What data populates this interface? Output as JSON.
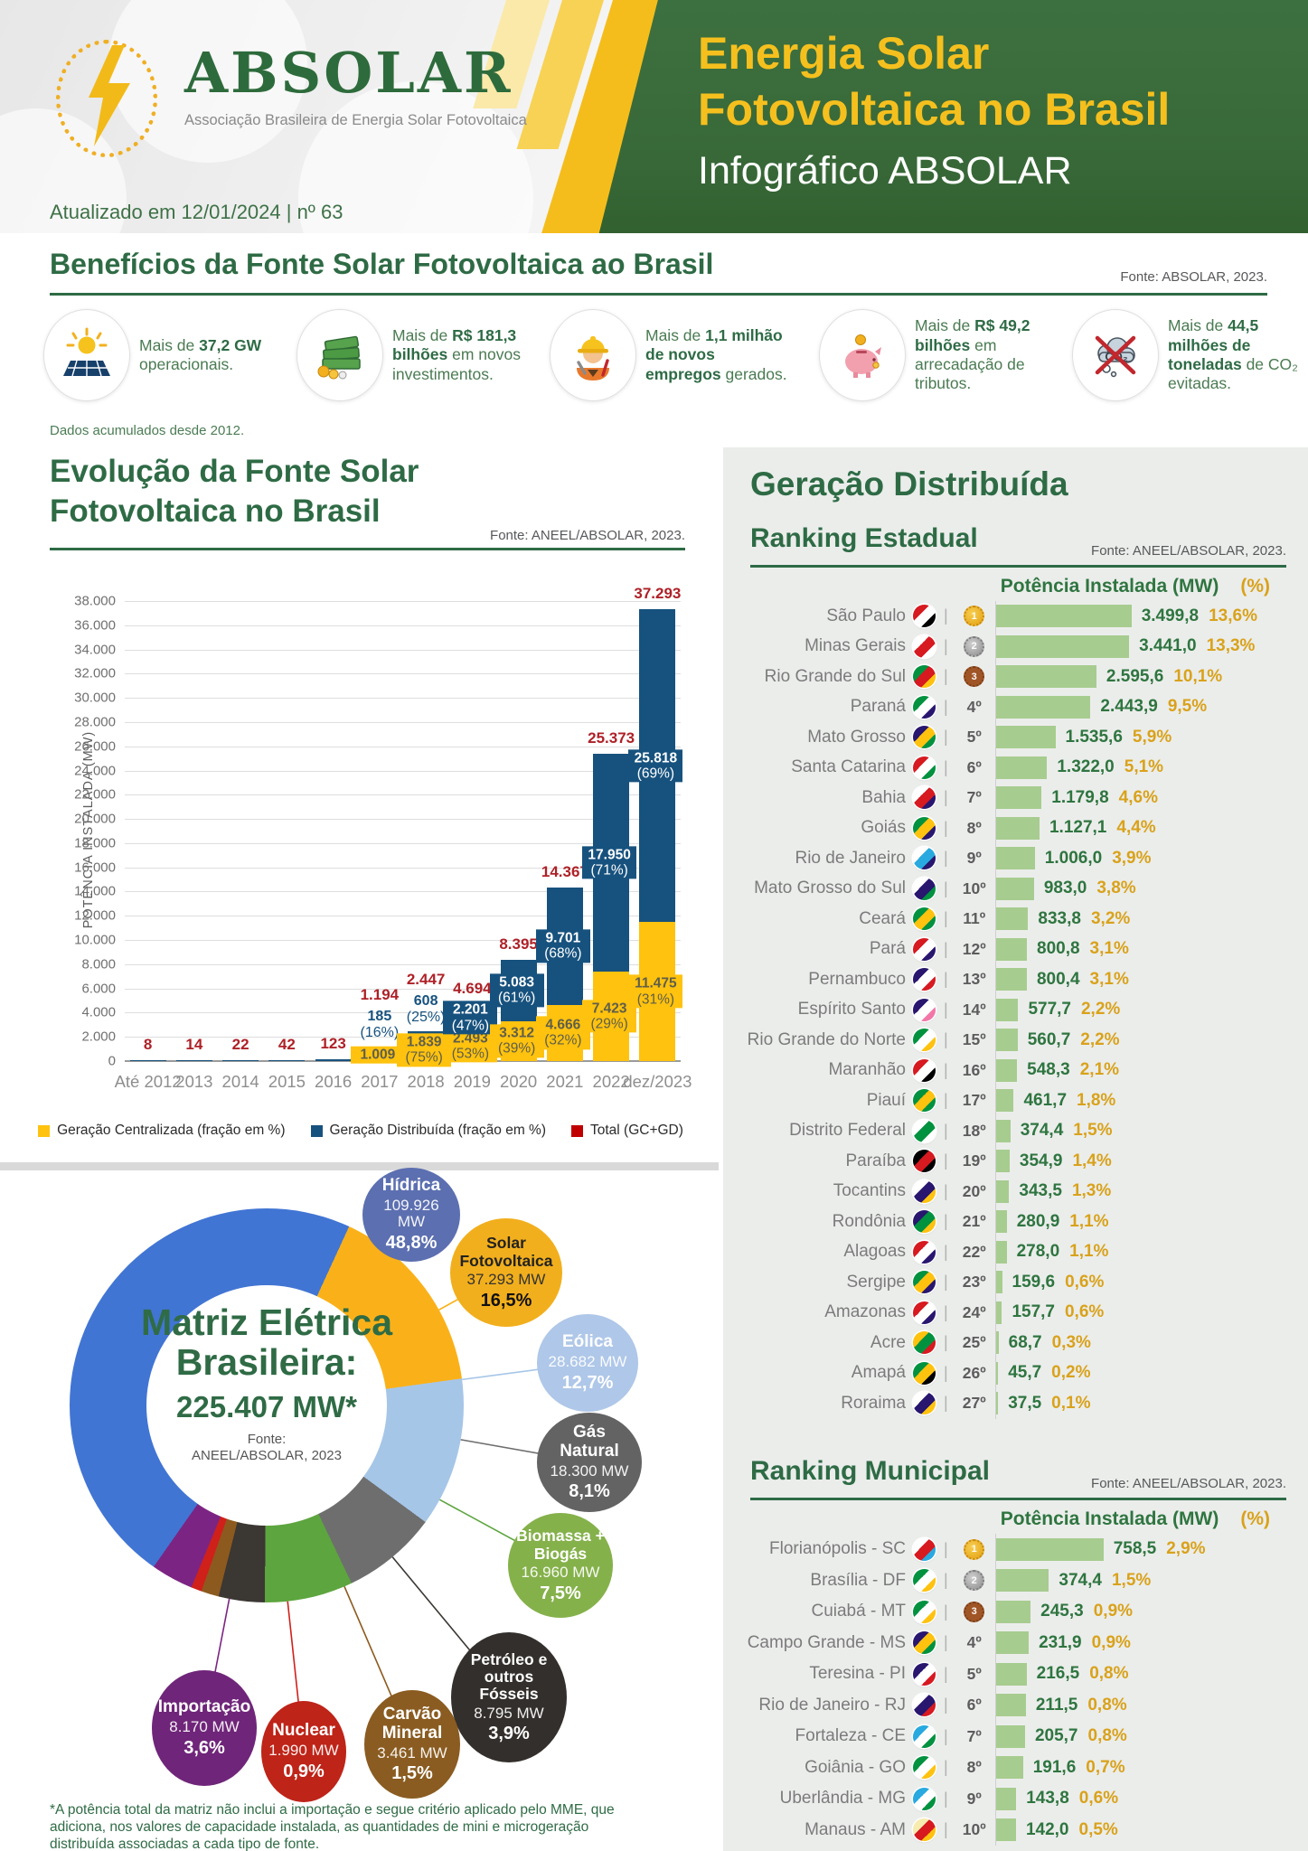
{
  "colors": {
    "brand_green": "#2E6B45",
    "header_green": "#386838",
    "accent_yellow": "#F5C01E",
    "gc_yellow": "#FFC20E",
    "gd_navy": "#17527E",
    "total_red": "#C00000",
    "ranking_bar_green": "#A7CC8F",
    "ranking_value_green": "#2F7540",
    "ranking_pct_gold": "#D9A21B",
    "medal_gold": "#E8A33D",
    "medal_silver": "#9E9E9E",
    "medal_bronze": "#A05526"
  },
  "header": {
    "logo_name": "ABSOLAR",
    "logo_subtitle": "Associação Brasileira de Energia Solar Fotovoltaica",
    "updated": "Atualizado em 12/01/2024 | nº 63",
    "title_line1": "Energia Solar",
    "title_line2": "Fotovoltaica no Brasil",
    "title_line3": "Infográfico ABSOLAR"
  },
  "benefits": {
    "title": "Benefícios da Fonte Solar Fotovoltaica ao Brasil",
    "source": "Fonte: ABSOLAR, 2023.",
    "note": "Dados acumulados desde 2012.",
    "items": [
      {
        "icon": "solar-panel-icon",
        "segments": [
          {
            "t": "Mais de ",
            "b": false
          },
          {
            "t": "37,2 GW",
            "b": true
          },
          {
            "t": " operacionais.",
            "b": false
          }
        ]
      },
      {
        "icon": "money-icon",
        "segments": [
          {
            "t": "Mais de ",
            "b": false
          },
          {
            "t": "R$ 181,3 bilhões",
            "b": true
          },
          {
            "t": " em novos investimentos.",
            "b": false
          }
        ]
      },
      {
        "icon": "worker-icon",
        "segments": [
          {
            "t": "Mais de ",
            "b": false
          },
          {
            "t": "1,1 milhão de novos empregos",
            "b": true
          },
          {
            "t": " gerados.",
            "b": false
          }
        ]
      },
      {
        "icon": "piggy-bank-icon",
        "segments": [
          {
            "t": "Mais de ",
            "b": false
          },
          {
            "t": "R$ 49,2 bilhões",
            "b": true
          },
          {
            "t": " em arrecadação de tributos.",
            "b": false
          }
        ]
      },
      {
        "icon": "co2-icon",
        "segments": [
          {
            "t": "Mais de ",
            "b": false
          },
          {
            "t": "44,5 milhões de toneladas",
            "b": true
          },
          {
            "t": " de CO₂ evitadas.",
            "b": false
          }
        ]
      }
    ]
  },
  "panel": {
    "title": "Geração Distribuída"
  },
  "chart_data": [
    {
      "type": "bar",
      "stacked": true,
      "title_line1": "Evolução da Fonte Solar",
      "title_line2": "Fotovoltaica no Brasil",
      "source": "Fonte: ANEEL/ABSOLAR, 2023.",
      "ylabel": "POTÊNCIA INSTALADA  (MW)",
      "ylim": [
        0,
        38000
      ],
      "ytick_step": 2000,
      "grid": true,
      "categories": [
        "Até 2012",
        "2013",
        "2014",
        "2015",
        "2016",
        "2017",
        "2018",
        "2019",
        "2020",
        "2021",
        "2022",
        "dez/2023"
      ],
      "series": [
        {
          "name": "Geração Centralizada (fração em %)",
          "color": "#FFC20E",
          "values": [
            0,
            0,
            0,
            0,
            0,
            1009,
            1839,
            2493,
            3312,
            4666,
            7423,
            11475
          ],
          "labels": [
            null,
            null,
            null,
            null,
            null,
            "1.009",
            "1.839 (75%)",
            "2.493 (53%)",
            "3.312 (39%)",
            "4.666 (32%)",
            "7.423 (29%)",
            "11.475 (31%)"
          ]
        },
        {
          "name": "Geração Distribuída (fração em %)",
          "color": "#17527E",
          "values": [
            8,
            14,
            22,
            42,
            123,
            185,
            608,
            2201,
            5083,
            9701,
            17950,
            25818
          ],
          "labels": [
            null,
            null,
            null,
            null,
            null,
            "185 (16%)",
            "608 (25%)",
            "2.201 (47%)",
            "5.083 (61%)",
            "9.701 (68%)",
            "17.950 (71%)",
            "25.818 (69%)"
          ]
        }
      ],
      "total": {
        "name": "Total (GC+GD)",
        "color": "#C00000",
        "values": [
          8,
          14,
          22,
          42,
          123,
          1194,
          2447,
          4694,
          8395,
          14367,
          25373,
          37293
        ],
        "labels": [
          "8",
          "14",
          "22",
          "42",
          "123",
          "1.194",
          "2.447",
          "4.694",
          "8.395",
          "14.367",
          "25.373",
          "37.293"
        ]
      }
    },
    {
      "type": "donut",
      "title": "Matriz Elétrica Brasileira:",
      "total_label": "225.407 MW*",
      "source_line1": "Fonte:",
      "source_line2": "ANEEL/ABSOLAR, 2023",
      "footnote": "*A potência total da matriz não inclui a importação e segue critério aplicado pelo MME, que adiciona, nos valores de capacidade instalada, as quantidades de mini e microgeração distribuída associadas a cada tipo de fonte.",
      "slices": [
        {
          "name": "Hídrica",
          "mw_label": "109.926 MW",
          "pct_label": "48,8%",
          "value": 48.8,
          "color": "#4175D3",
          "bubble_color": "#5C6FB0",
          "text": "light"
        },
        {
          "name": "Solar Fotovoltaica",
          "mw_label": "37.293 MW",
          "pct_label": "16,5%",
          "value": 16.5,
          "color": "#FAB119",
          "bubble_color": "#F2AF1D",
          "text": "dark"
        },
        {
          "name": "Eólica",
          "mw_label": "28.682 MW",
          "pct_label": "12,7%",
          "value": 12.7,
          "color": "#A6C6E8",
          "bubble_color": "#AFC7E8",
          "text": "light"
        },
        {
          "name": "Gás Natural",
          "mw_label": "18.300 MW",
          "pct_label": "8,1%",
          "value": 8.1,
          "color": "#6E6E6E",
          "bubble_color": "#636363",
          "text": "light"
        },
        {
          "name": "Biomassa + Biogás",
          "mw_label": "16.960 MW",
          "pct_label": "7,5%",
          "value": 7.5,
          "color": "#5DA53F",
          "bubble_color": "#85B14B",
          "text": "light"
        },
        {
          "name": "Petróleo e outros Fósseis",
          "mw_label": "8.795 MW",
          "pct_label": "3,9%",
          "value": 3.9,
          "color": "#3B3733",
          "bubble_color": "#332F2C",
          "text": "light"
        },
        {
          "name": "Carvão Mineral",
          "mw_label": "3.461 MW",
          "pct_label": "1,5%",
          "value": 1.5,
          "color": "#8C5A1E",
          "bubble_color": "#8A5C21",
          "text": "light"
        },
        {
          "name": "Nuclear",
          "mw_label": "1.990 MW",
          "pct_label": "0,9%",
          "value": 0.9,
          "color": "#CF201A",
          "bubble_color": "#BE2418",
          "text": "light"
        },
        {
          "name": "Importação",
          "mw_label": "8.170 MW",
          "pct_label": "3,6%",
          "value": 3.6,
          "color": "#7C2483",
          "bubble_color": "#6F2579",
          "text": "light"
        }
      ]
    },
    {
      "type": "bar",
      "title": "Ranking Estadual",
      "source": "Fonte: ANEEL/ABSOLAR, 2023.",
      "value_header": "Potência Instalada (MW)",
      "pct_header": "(%)",
      "max": 3499.8,
      "rows": [
        {
          "name": "São Paulo",
          "rank": "1º",
          "medal": "gold",
          "value": 3499.8,
          "label": "3.499,8",
          "pct": "13,6%",
          "flag": [
            "#d71920",
            "#ffffff",
            "#000000"
          ]
        },
        {
          "name": "Minas Gerais",
          "rank": "2º",
          "medal": "silver",
          "value": 3441.0,
          "label": "3.441,0",
          "pct": "13,3%",
          "flag": [
            "#ffffff",
            "#d71920",
            "#ffffff"
          ]
        },
        {
          "name": "Rio Grande do Sul",
          "rank": "3º",
          "medal": "bronze",
          "value": 2595.6,
          "label": "2.595,6",
          "pct": "10,1%",
          "flag": [
            "#00923f",
            "#d71920",
            "#ffc20e"
          ]
        },
        {
          "name": "Paraná",
          "rank": "4º",
          "medal": null,
          "value": 2443.9,
          "label": "2.443,9",
          "pct": "9,5%",
          "flag": [
            "#00923f",
            "#ffffff",
            "#28166f"
          ]
        },
        {
          "name": "Mato Grosso",
          "rank": "5º",
          "medal": null,
          "value": 1535.6,
          "label": "1.535,6",
          "pct": "5,9%",
          "flag": [
            "#28166f",
            "#ffc20e",
            "#00923f"
          ]
        },
        {
          "name": "Santa Catarina",
          "rank": "6º",
          "medal": null,
          "value": 1322.0,
          "label": "1.322,0",
          "pct": "5,1%",
          "flag": [
            "#d71920",
            "#ffffff",
            "#00923f"
          ]
        },
        {
          "name": "Bahia",
          "rank": "7º",
          "medal": null,
          "value": 1179.8,
          "label": "1.179,8",
          "pct": "4,6%",
          "flag": [
            "#ffffff",
            "#d71920",
            "#28166f"
          ]
        },
        {
          "name": "Goiás",
          "rank": "8º",
          "medal": null,
          "value": 1127.1,
          "label": "1.127,1",
          "pct": "4,4%",
          "flag": [
            "#00923f",
            "#ffc20e",
            "#28166f"
          ]
        },
        {
          "name": "Rio de Janeiro",
          "rank": "9º",
          "medal": null,
          "value": 1006.0,
          "label": "1.006,0",
          "pct": "3,9%",
          "flag": [
            "#ffffff",
            "#28a9e0",
            "#28166f"
          ]
        },
        {
          "name": "Mato Grosso do Sul",
          "rank": "10º",
          "medal": null,
          "value": 983.0,
          "label": "983,0",
          "pct": "3,8%",
          "flag": [
            "#ffffff",
            "#28166f",
            "#00923f"
          ]
        },
        {
          "name": "Ceará",
          "rank": "11º",
          "medal": null,
          "value": 833.8,
          "label": "833,8",
          "pct": "3,2%",
          "flag": [
            "#00923f",
            "#ffc20e",
            "#00923f"
          ]
        },
        {
          "name": "Pará",
          "rank": "12º",
          "medal": null,
          "value": 800.8,
          "label": "800,8",
          "pct": "3,1%",
          "flag": [
            "#d71920",
            "#ffffff",
            "#28166f"
          ]
        },
        {
          "name": "Pernambuco",
          "rank": "13º",
          "medal": null,
          "value": 800.4,
          "label": "800,4",
          "pct": "3,1%",
          "flag": [
            "#28166f",
            "#ffffff",
            "#d71920"
          ]
        },
        {
          "name": "Espírito Santo",
          "rank": "14º",
          "medal": null,
          "value": 577.7,
          "label": "577,7",
          "pct": "2,2%",
          "flag": [
            "#28166f",
            "#ffffff",
            "#f277a8"
          ]
        },
        {
          "name": "Rio Grande do Norte",
          "rank": "15º",
          "medal": null,
          "value": 560.7,
          "label": "560,7",
          "pct": "2,2%",
          "flag": [
            "#00923f",
            "#ffffff",
            "#ffc20e"
          ]
        },
        {
          "name": "Maranhão",
          "rank": "16º",
          "medal": null,
          "value": 548.3,
          "label": "548,3",
          "pct": "2,1%",
          "flag": [
            "#d71920",
            "#ffffff",
            "#000000"
          ]
        },
        {
          "name": "Piauí",
          "rank": "17º",
          "medal": null,
          "value": 461.7,
          "label": "461,7",
          "pct": "1,8%",
          "flag": [
            "#00923f",
            "#ffc20e",
            "#00923f"
          ]
        },
        {
          "name": "Distrito Federal",
          "rank": "18º",
          "medal": null,
          "value": 374.4,
          "label": "374,4",
          "pct": "1,5%",
          "flag": [
            "#ffffff",
            "#00923f",
            "#ffffff"
          ]
        },
        {
          "name": "Paraíba",
          "rank": "19º",
          "medal": null,
          "value": 354.9,
          "label": "354,9",
          "pct": "1,4%",
          "flag": [
            "#000000",
            "#d71920",
            "#000000"
          ]
        },
        {
          "name": "Tocantins",
          "rank": "20º",
          "medal": null,
          "value": 343.5,
          "label": "343,5",
          "pct": "1,3%",
          "flag": [
            "#ffffff",
            "#28166f",
            "#ffc20e"
          ]
        },
        {
          "name": "Rondônia",
          "rank": "21º",
          "medal": null,
          "value": 280.9,
          "label": "280,9",
          "pct": "1,1%",
          "flag": [
            "#28166f",
            "#00923f",
            "#ffc20e"
          ]
        },
        {
          "name": "Alagoas",
          "rank": "22º",
          "medal": null,
          "value": 278.0,
          "label": "278,0",
          "pct": "1,1%",
          "flag": [
            "#d71920",
            "#ffffff",
            "#28166f"
          ]
        },
        {
          "name": "Sergipe",
          "rank": "23º",
          "medal": null,
          "value": 159.6,
          "label": "159,6",
          "pct": "0,6%",
          "flag": [
            "#00923f",
            "#ffc20e",
            "#28166f"
          ]
        },
        {
          "name": "Amazonas",
          "rank": "24º",
          "medal": null,
          "value": 157.7,
          "label": "157,7",
          "pct": "0,6%",
          "flag": [
            "#d71920",
            "#ffffff",
            "#28166f"
          ]
        },
        {
          "name": "Acre",
          "rank": "25º",
          "medal": null,
          "value": 68.7,
          "label": "68,7",
          "pct": "0,3%",
          "flag": [
            "#ffc20e",
            "#00923f",
            "#d71920"
          ]
        },
        {
          "name": "Amapá",
          "rank": "26º",
          "medal": null,
          "value": 45.7,
          "label": "45,7",
          "pct": "0,2%",
          "flag": [
            "#00923f",
            "#ffc20e",
            "#000000"
          ]
        },
        {
          "name": "Roraima",
          "rank": "27º",
          "medal": null,
          "value": 37.5,
          "label": "37,5",
          "pct": "0,1%",
          "flag": [
            "#ffffff",
            "#28166f",
            "#ffc20e"
          ]
        }
      ]
    },
    {
      "type": "bar",
      "title": "Ranking Municipal",
      "source": "Fonte: ANEEL/ABSOLAR, 2023.",
      "value_header": "Potência Instalada (MW)",
      "pct_header": "(%)",
      "max": 758.5,
      "rows": [
        {
          "name": "Florianópolis - SC",
          "rank": "1º",
          "medal": "gold",
          "value": 758.5,
          "label": "758,5",
          "pct": "2,9%",
          "flag": [
            "#ffffff",
            "#d71920",
            "#28a9e0"
          ]
        },
        {
          "name": "Brasília - DF",
          "rank": "2º",
          "medal": "silver",
          "value": 374.4,
          "label": "374,4",
          "pct": "1,5%",
          "flag": [
            "#00923f",
            "#ffffff",
            "#ffc20e"
          ]
        },
        {
          "name": "Cuiabá - MT",
          "rank": "3º",
          "medal": "bronze",
          "value": 245.3,
          "label": "245,3",
          "pct": "0,9%",
          "flag": [
            "#00923f",
            "#ffffff",
            "#ffc20e"
          ]
        },
        {
          "name": "Campo Grande - MS",
          "rank": "4º",
          "medal": null,
          "value": 231.9,
          "label": "231,9",
          "pct": "0,9%",
          "flag": [
            "#28166f",
            "#ffc20e",
            "#00923f"
          ]
        },
        {
          "name": "Teresina - PI",
          "rank": "5º",
          "medal": null,
          "value": 216.5,
          "label": "216,5",
          "pct": "0,8%",
          "flag": [
            "#28166f",
            "#ffffff",
            "#d71920"
          ]
        },
        {
          "name": "Rio de Janeiro - RJ",
          "rank": "6º",
          "medal": null,
          "value": 211.5,
          "label": "211,5",
          "pct": "0,8%",
          "flag": [
            "#ffffff",
            "#28166f",
            "#d71920"
          ]
        },
        {
          "name": "Fortaleza - CE",
          "rank": "7º",
          "medal": null,
          "value": 205.7,
          "label": "205,7",
          "pct": "0,8%",
          "flag": [
            "#28a9e0",
            "#ffffff",
            "#00923f"
          ]
        },
        {
          "name": "Goiânia - GO",
          "rank": "8º",
          "medal": null,
          "value": 191.6,
          "label": "191,6",
          "pct": "0,7%",
          "flag": [
            "#00923f",
            "#ffffff",
            "#ffc20e"
          ]
        },
        {
          "name": "Uberlândia - MG",
          "rank": "9º",
          "medal": null,
          "value": 143.8,
          "label": "143,8",
          "pct": "0,6%",
          "flag": [
            "#28a9e0",
            "#ffffff",
            "#00923f"
          ]
        },
        {
          "name": "Manaus - AM",
          "rank": "10º",
          "medal": null,
          "value": 142.0,
          "label": "142,0",
          "pct": "0,5%",
          "flag": [
            "#f7ecb0",
            "#d71920",
            "#ffc20e"
          ]
        }
      ]
    }
  ]
}
